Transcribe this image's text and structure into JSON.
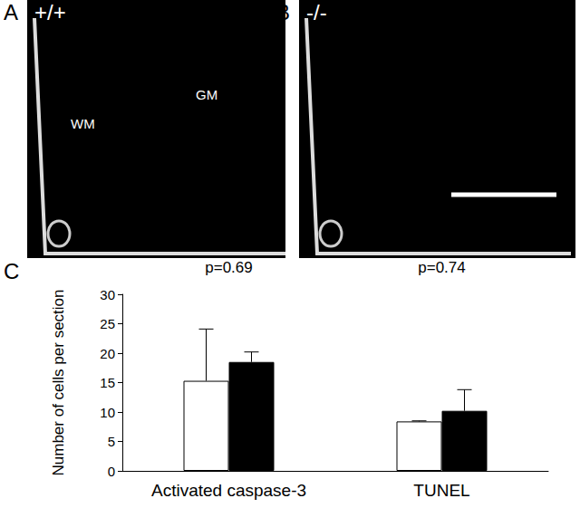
{
  "panels": [
    {
      "label": "A",
      "genotype": "+/+",
      "regions": [
        "WM",
        "GM"
      ]
    },
    {
      "label": "B",
      "genotype": "-/-",
      "regions": []
    }
  ],
  "chart_data": {
    "panel": "C",
    "type": "bar",
    "categories": [
      "Activated caspase-3",
      "TUNEL"
    ],
    "y_label": "Number of cells per section",
    "ylim": [
      0,
      30
    ],
    "yticks": [
      0,
      5,
      10,
      15,
      20,
      25,
      30
    ],
    "grid": false,
    "annotations": [
      "p=0.69",
      "p=0.74"
    ],
    "series": [
      {
        "color": "#ffffff",
        "values": [
          15.3,
          8.4
        ],
        "errors": [
          8.8,
          0.1
        ]
      },
      {
        "color": "#000000",
        "values": [
          18.5,
          10.2
        ],
        "errors": [
          1.7,
          3.6
        ]
      }
    ]
  }
}
